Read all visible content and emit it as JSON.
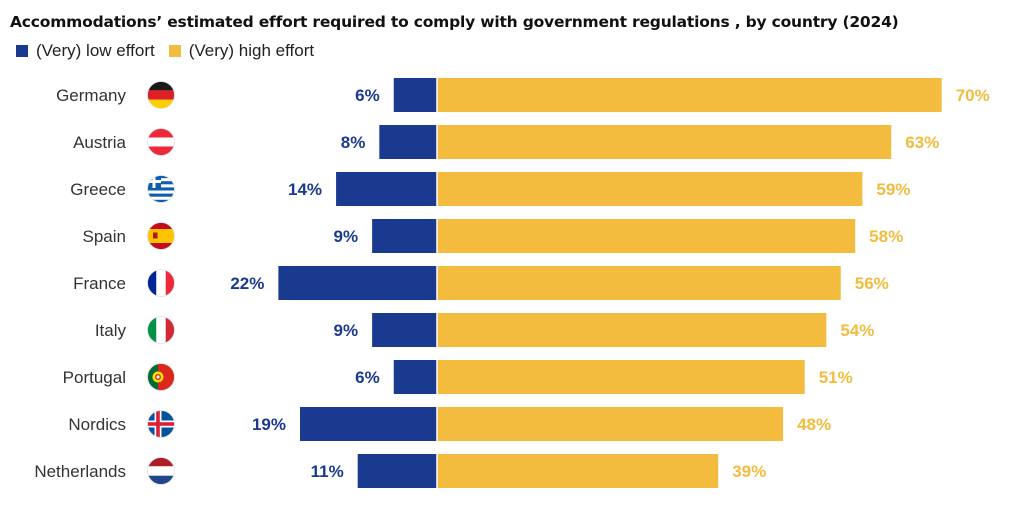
{
  "chart_data": {
    "type": "bar",
    "orientation": "horizontal-diverging",
    "title": "Accommodations’ estimated effort required to comply with government regulations , by country  (2024)",
    "categories": [
      "Germany",
      "Austria",
      "Greece",
      "Spain",
      "France",
      "Italy",
      "Portugal",
      "Nordics",
      "Netherlands"
    ],
    "series": [
      {
        "name": "(Very) low effort",
        "values": [
          6,
          8,
          14,
          9,
          22,
          9,
          6,
          19,
          11
        ],
        "labels": [
          "6%",
          "8%",
          "14%",
          "9%",
          "22%",
          "9%",
          "6%",
          "19%",
          "11%"
        ],
        "color": "#1A3A8F"
      },
      {
        "name": "(Very) high effort",
        "values": [
          70,
          63,
          59,
          58,
          56,
          54,
          51,
          48,
          39
        ],
        "labels": [
          "70%",
          "63%",
          "59%",
          "58%",
          "56%",
          "54%",
          "51%",
          "48%",
          "39%"
        ],
        "color": "#F3BC3F"
      }
    ],
    "unit": "%",
    "flags": [
      "germany-flag",
      "austria-flag",
      "greece-flag",
      "spain-flag",
      "france-flag",
      "italy-flag",
      "portugal-flag",
      "nordics-flag",
      "netherlands-flag"
    ],
    "legend_position": "top-left",
    "grid": false
  }
}
